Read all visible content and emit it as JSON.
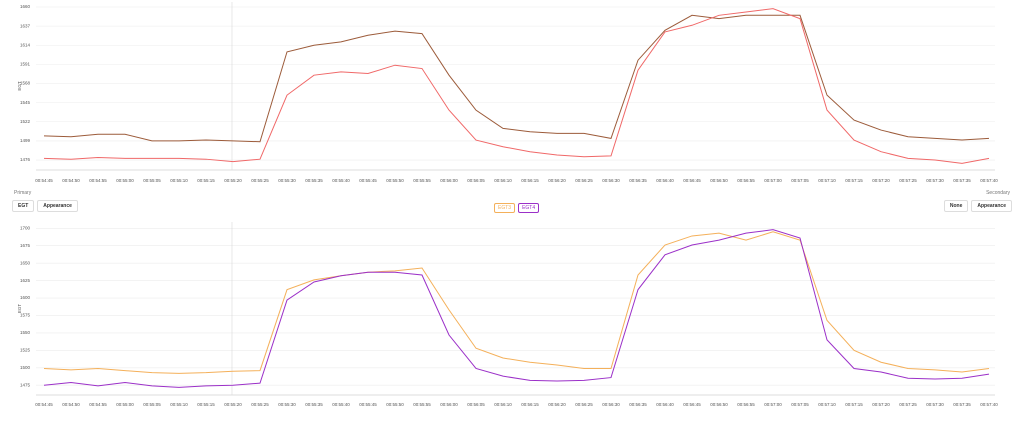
{
  "ui": {
    "primary_label": "Primary",
    "secondary_label": "Secondary",
    "primary_select": "EGT",
    "secondary_select": "None",
    "appearance_left": "Appearance",
    "appearance_right": "Appearance"
  },
  "chart_data": [
    {
      "type": "line",
      "ylabel": "EGT",
      "x": [
        "00:54:45",
        "00:54:50",
        "00:54:55",
        "00:55:00",
        "00:55:05",
        "00:55:10",
        "00:55:15",
        "00:55:20",
        "00:55:25",
        "00:55:30",
        "00:55:35",
        "00:55:40",
        "00:55:45",
        "00:55:50",
        "00:55:55",
        "00:56:00",
        "00:56:05",
        "00:56:10",
        "00:56:15",
        "00:56:20",
        "00:56:25",
        "00:56:30",
        "00:56:35",
        "00:56:40",
        "00:56:45",
        "00:56:50",
        "00:56:55",
        "00:57:00",
        "00:57:05",
        "00:57:10",
        "00:57:15",
        "00:57:20",
        "00:57:25",
        "00:57:30",
        "00:57:35",
        "00:57:40"
      ],
      "ylim": [
        1464,
        1666
      ],
      "yticks": [
        1476,
        1499,
        1522,
        1545,
        1568,
        1591,
        1614,
        1637,
        1660
      ],
      "grid": true,
      "series": [
        {
          "color": "#9c5b3a",
          "values": [
            1505,
            1504,
            1507,
            1507,
            1499,
            1499,
            1500,
            1499,
            1498,
            1606,
            1614,
            1618,
            1626,
            1631,
            1628,
            1578,
            1536,
            1514,
            1510,
            1508,
            1508,
            1502,
            1596,
            1632,
            1650,
            1646,
            1650,
            1650,
            1650,
            1554,
            1524,
            1512,
            1504,
            1502,
            1500,
            1502
          ]
        },
        {
          "color": "#f06868",
          "values": [
            1478,
            1477,
            1479,
            1478,
            1478,
            1478,
            1477,
            1474,
            1477,
            1554,
            1578,
            1582,
            1580,
            1590,
            1586,
            1536,
            1500,
            1492,
            1486,
            1482,
            1480,
            1481,
            1584,
            1630,
            1638,
            1650,
            1654,
            1658,
            1646,
            1536,
            1500,
            1486,
            1478,
            1476,
            1472,
            1478
          ]
        }
      ]
    },
    {
      "type": "line",
      "ylabel": "EGT",
      "x": [
        "00:54:45",
        "00:54:50",
        "00:54:55",
        "00:55:00",
        "00:55:05",
        "00:55:10",
        "00:55:15",
        "00:55:20",
        "00:55:25",
        "00:55:30",
        "00:55:35",
        "00:55:40",
        "00:55:45",
        "00:55:50",
        "00:55:55",
        "00:56:00",
        "00:56:05",
        "00:56:10",
        "00:56:15",
        "00:56:20",
        "00:56:25",
        "00:56:30",
        "00:56:35",
        "00:56:40",
        "00:56:45",
        "00:56:50",
        "00:56:55",
        "00:57:00",
        "00:57:05",
        "00:57:10",
        "00:57:15",
        "00:57:20",
        "00:57:25",
        "00:57:30",
        "00:57:35",
        "00:57:40"
      ],
      "ylim": [
        1461,
        1709
      ],
      "yticks": [
        1475,
        1500,
        1525,
        1550,
        1575,
        1600,
        1625,
        1650,
        1675,
        1700
      ],
      "grid": true,
      "series": [
        {
          "name": "EGT3",
          "color": "#f4b05a",
          "values": [
            1499,
            1497,
            1499,
            1496,
            1493,
            1492,
            1493,
            1495,
            1496,
            1612,
            1626,
            1632,
            1637,
            1639,
            1643,
            1583,
            1528,
            1514,
            1508,
            1504,
            1499,
            1499,
            1633,
            1676,
            1689,
            1693,
            1683,
            1695,
            1683,
            1568,
            1525,
            1508,
            1499,
            1497,
            1494,
            1499
          ]
        },
        {
          "name": "EGT4",
          "color": "#9b30c8",
          "values": [
            1475,
            1479,
            1474,
            1479,
            1474,
            1472,
            1474,
            1475,
            1478,
            1597,
            1623,
            1632,
            1637,
            1637,
            1633,
            1547,
            1499,
            1488,
            1482,
            1481,
            1482,
            1486,
            1612,
            1662,
            1676,
            1683,
            1693,
            1698,
            1686,
            1540,
            1499,
            1494,
            1485,
            1484,
            1485,
            1491
          ]
        }
      ]
    }
  ]
}
